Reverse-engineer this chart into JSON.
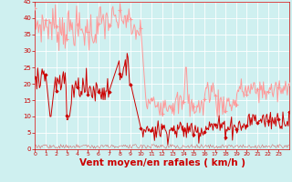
{
  "background_color": "#cff0f0",
  "grid_color": "#aadddd",
  "xlabel": "Vent moyen/en rafales ( km/h )",
  "xlabel_color": "#cc0000",
  "xlabel_fontsize": 7.5,
  "tick_color": "#cc0000",
  "line_gust_color": "#ff9999",
  "line_avg_color": "#cc0000",
  "line_dir_color": "#cc0000",
  "ylim": [
    0,
    45
  ],
  "xlim": [
    0,
    24
  ],
  "yticks": [
    0,
    5,
    10,
    15,
    20,
    25,
    30,
    35,
    40,
    45
  ],
  "xticks": [
    0,
    1,
    2,
    3,
    4,
    5,
    6,
    7,
    8,
    9,
    10,
    11,
    12,
    13,
    14,
    15,
    16,
    17,
    18,
    19,
    20,
    21,
    22,
    23
  ]
}
